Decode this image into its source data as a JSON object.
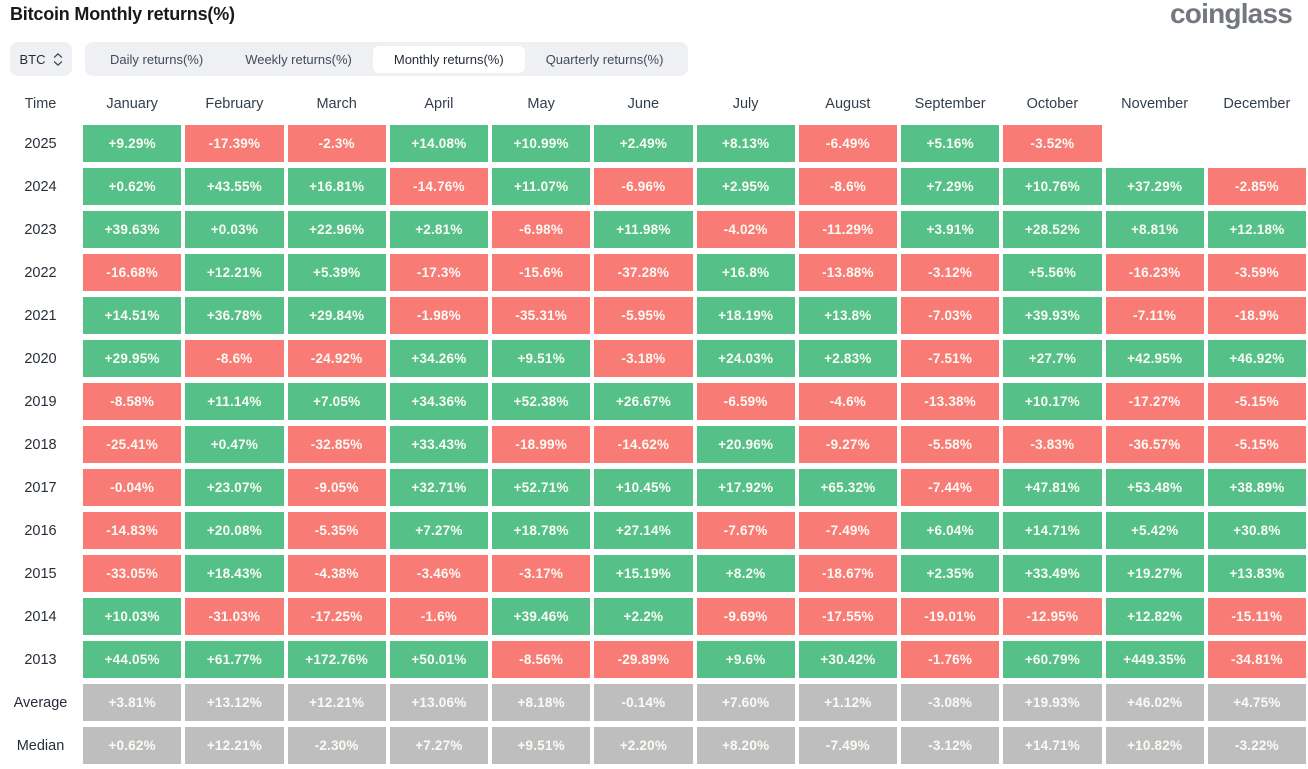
{
  "header": {
    "title": "Bitcoin Monthly returns(%)",
    "logo": "coinglass"
  },
  "controls": {
    "symbol_select": {
      "value": "BTC",
      "icon": "up-down-chevron"
    },
    "tabs": [
      {
        "label": "Daily returns(%)",
        "active": false
      },
      {
        "label": "Weekly returns(%)",
        "active": false
      },
      {
        "label": "Monthly returns(%)",
        "active": true
      },
      {
        "label": "Quarterly returns(%)",
        "active": false
      }
    ]
  },
  "colors": {
    "positive": "#55c189",
    "negative": "#f97b76",
    "summary": "#bebebe",
    "cell_text": "#fbfbf5",
    "control_bg": "#eef0f3"
  },
  "chart_data": {
    "type": "table",
    "title": "Bitcoin Monthly returns(%)",
    "time_column_header": "Time",
    "columns": [
      "January",
      "February",
      "March",
      "April",
      "May",
      "June",
      "July",
      "August",
      "September",
      "October",
      "November",
      "December"
    ],
    "rows": [
      {
        "label": "2025",
        "kind": "year",
        "values": [
          "+9.29%",
          "-17.39%",
          "-2.3%",
          "+14.08%",
          "+10.99%",
          "+2.49%",
          "+8.13%",
          "-6.49%",
          "+5.16%",
          "-3.52%",
          null,
          null
        ]
      },
      {
        "label": "2024",
        "kind": "year",
        "values": [
          "+0.62%",
          "+43.55%",
          "+16.81%",
          "-14.76%",
          "+11.07%",
          "-6.96%",
          "+2.95%",
          "-8.6%",
          "+7.29%",
          "+10.76%",
          "+37.29%",
          "-2.85%"
        ]
      },
      {
        "label": "2023",
        "kind": "year",
        "values": [
          "+39.63%",
          "+0.03%",
          "+22.96%",
          "+2.81%",
          "-6.98%",
          "+11.98%",
          "-4.02%",
          "-11.29%",
          "+3.91%",
          "+28.52%",
          "+8.81%",
          "+12.18%"
        ]
      },
      {
        "label": "2022",
        "kind": "year",
        "values": [
          "-16.68%",
          "+12.21%",
          "+5.39%",
          "-17.3%",
          "-15.6%",
          "-37.28%",
          "+16.8%",
          "-13.88%",
          "-3.12%",
          "+5.56%",
          "-16.23%",
          "-3.59%"
        ]
      },
      {
        "label": "2021",
        "kind": "year",
        "values": [
          "+14.51%",
          "+36.78%",
          "+29.84%",
          "-1.98%",
          "-35.31%",
          "-5.95%",
          "+18.19%",
          "+13.8%",
          "-7.03%",
          "+39.93%",
          "-7.11%",
          "-18.9%"
        ]
      },
      {
        "label": "2020",
        "kind": "year",
        "values": [
          "+29.95%",
          "-8.6%",
          "-24.92%",
          "+34.26%",
          "+9.51%",
          "-3.18%",
          "+24.03%",
          "+2.83%",
          "-7.51%",
          "+27.7%",
          "+42.95%",
          "+46.92%"
        ]
      },
      {
        "label": "2019",
        "kind": "year",
        "values": [
          "-8.58%",
          "+11.14%",
          "+7.05%",
          "+34.36%",
          "+52.38%",
          "+26.67%",
          "-6.59%",
          "-4.6%",
          "-13.38%",
          "+10.17%",
          "-17.27%",
          "-5.15%"
        ]
      },
      {
        "label": "2018",
        "kind": "year",
        "values": [
          "-25.41%",
          "+0.47%",
          "-32.85%",
          "+33.43%",
          "-18.99%",
          "-14.62%",
          "+20.96%",
          "-9.27%",
          "-5.58%",
          "-3.83%",
          "-36.57%",
          "-5.15%"
        ]
      },
      {
        "label": "2017",
        "kind": "year",
        "values": [
          "-0.04%",
          "+23.07%",
          "-9.05%",
          "+32.71%",
          "+52.71%",
          "+10.45%",
          "+17.92%",
          "+65.32%",
          "-7.44%",
          "+47.81%",
          "+53.48%",
          "+38.89%"
        ]
      },
      {
        "label": "2016",
        "kind": "year",
        "values": [
          "-14.83%",
          "+20.08%",
          "-5.35%",
          "+7.27%",
          "+18.78%",
          "+27.14%",
          "-7.67%",
          "-7.49%",
          "+6.04%",
          "+14.71%",
          "+5.42%",
          "+30.8%"
        ]
      },
      {
        "label": "2015",
        "kind": "year",
        "values": [
          "-33.05%",
          "+18.43%",
          "-4.38%",
          "-3.46%",
          "-3.17%",
          "+15.19%",
          "+8.2%",
          "-18.67%",
          "+2.35%",
          "+33.49%",
          "+19.27%",
          "+13.83%"
        ]
      },
      {
        "label": "2014",
        "kind": "year",
        "values": [
          "+10.03%",
          "-31.03%",
          "-17.25%",
          "-1.6%",
          "+39.46%",
          "+2.2%",
          "-9.69%",
          "-17.55%",
          "-19.01%",
          "-12.95%",
          "+12.82%",
          "-15.11%"
        ]
      },
      {
        "label": "2013",
        "kind": "year",
        "values": [
          "+44.05%",
          "+61.77%",
          "+172.76%",
          "+50.01%",
          "-8.56%",
          "-29.89%",
          "+9.6%",
          "+30.42%",
          "-1.76%",
          "+60.79%",
          "+449.35%",
          "-34.81%"
        ]
      },
      {
        "label": "Average",
        "kind": "summary",
        "values": [
          "+3.81%",
          "+13.12%",
          "+12.21%",
          "+13.06%",
          "+8.18%",
          "-0.14%",
          "+7.60%",
          "+1.12%",
          "-3.08%",
          "+19.93%",
          "+46.02%",
          "+4.75%"
        ]
      },
      {
        "label": "Median",
        "kind": "summary",
        "values": [
          "+0.62%",
          "+12.21%",
          "-2.30%",
          "+7.27%",
          "+9.51%",
          "+2.20%",
          "+8.20%",
          "-7.49%",
          "-3.12%",
          "+14.71%",
          "+10.82%",
          "-3.22%"
        ]
      }
    ]
  }
}
